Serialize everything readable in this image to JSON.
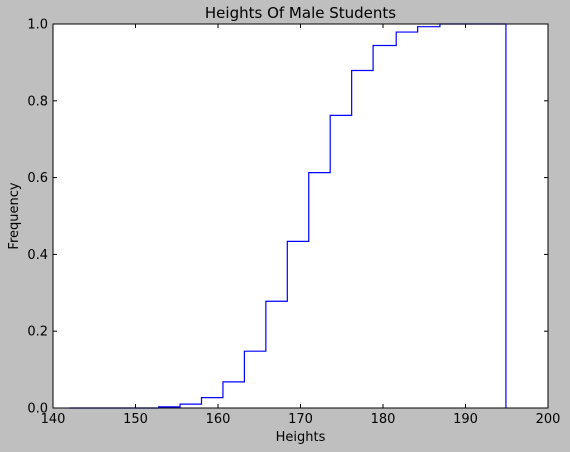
{
  "chart_data": {
    "type": "line",
    "title": "Heights Of Male Students",
    "xlabel": "Heights",
    "ylabel": "Frequency",
    "xlim": [
      140,
      200
    ],
    "ylim": [
      0,
      1.0
    ],
    "x_ticks": [
      140,
      150,
      160,
      170,
      180,
      190,
      200
    ],
    "y_ticks": [
      0.0,
      0.2,
      0.4,
      0.6,
      0.8,
      1.0
    ],
    "grid": false,
    "line_color": "#0000ff",
    "series": [
      {
        "step": "post",
        "x": [
          142,
          144.7,
          147.4,
          150.1,
          152.8,
          155.4,
          158.0,
          160.6,
          163.2,
          165.8,
          168.4,
          171.0,
          173.6,
          176.2,
          178.8,
          181.6,
          184.2,
          186.9,
          194.9
        ],
        "values": [
          0.0,
          0.0,
          0.0,
          0.0,
          0.003,
          0.01,
          0.027,
          0.068,
          0.148,
          0.278,
          0.434,
          0.613,
          0.762,
          0.879,
          0.944,
          0.979,
          0.993,
          1.0,
          1.0
        ]
      },
      {
        "x": [
          194.9,
          194.9
        ],
        "values": [
          0.0,
          1.0
        ]
      }
    ]
  }
}
